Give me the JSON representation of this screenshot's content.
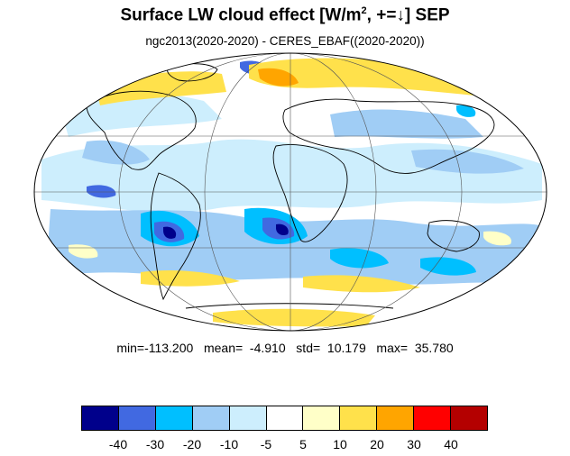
{
  "figure": {
    "title_main": "Surface LW cloud effect [W/m",
    "title_sup": "2",
    "title_end": ", +=↓]  SEP",
    "subtitle": "ngc2013(2020-2020) - CERES_EBAF((2020-2020))"
  },
  "stats": {
    "text": "min=-113.200   mean=  -4.910   std=  10.179   max=  35.780"
  },
  "colorbar": {
    "colors": [
      "#00008b",
      "#4169e1",
      "#00bfff",
      "#a0cdf5",
      "#cdeefd",
      "#ffffff",
      "#ffffc8",
      "#ffe14b",
      "#ffa500",
      "#ff0000",
      "#b40000"
    ],
    "labels": [
      "-40",
      "-30",
      "-20",
      "-10",
      "-5",
      "5",
      "10",
      "20",
      "30",
      "40"
    ]
  },
  "map": {
    "projection": "mollweide",
    "land_outline_color": "#000000",
    "grid_color": "#555555"
  }
}
